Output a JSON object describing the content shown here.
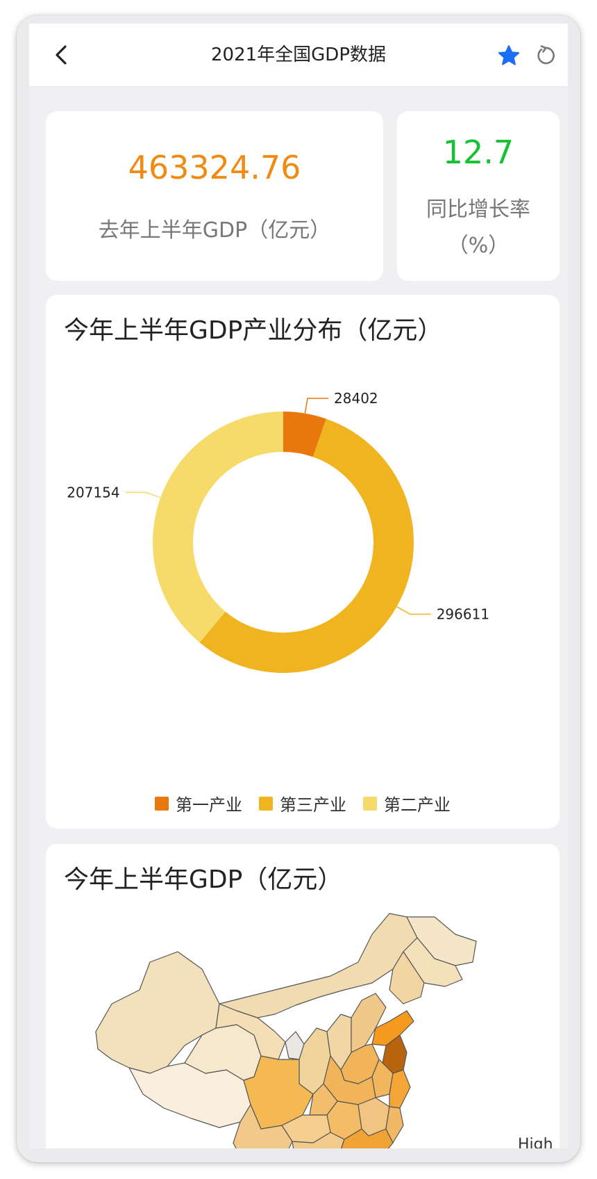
{
  "header": {
    "title": "2021年全国GDP数据",
    "back_icon": "chevron-left-icon",
    "favorite_icon": "star-icon",
    "refresh_icon": "refresh-icon",
    "favorite_color": "#1a6ef5"
  },
  "kpis": [
    {
      "value": "463324.76",
      "label": "去年上半年GDP（亿元）",
      "color": "#f18a12"
    },
    {
      "value": "12.7",
      "label": "同比增长率（%）",
      "color": "#16c132"
    }
  ],
  "pie_card": {
    "title": "今年上半年GDP产业分布（亿元）"
  },
  "chart_data": {
    "type": "pie",
    "title": "今年上半年GDP产业分布（亿元）",
    "donut": true,
    "legend_placement": "bottom",
    "slices": [
      {
        "name": "第一产业",
        "value": 28402,
        "color": "#e8780c"
      },
      {
        "name": "第三产业",
        "value": 296611,
        "color": "#f0b420"
      },
      {
        "name": "第二产业",
        "value": 207154,
        "color": "#f6da6a"
      }
    ]
  },
  "map_card": {
    "title": "今年上半年GDP（亿元）",
    "legend_high_label": "High"
  }
}
